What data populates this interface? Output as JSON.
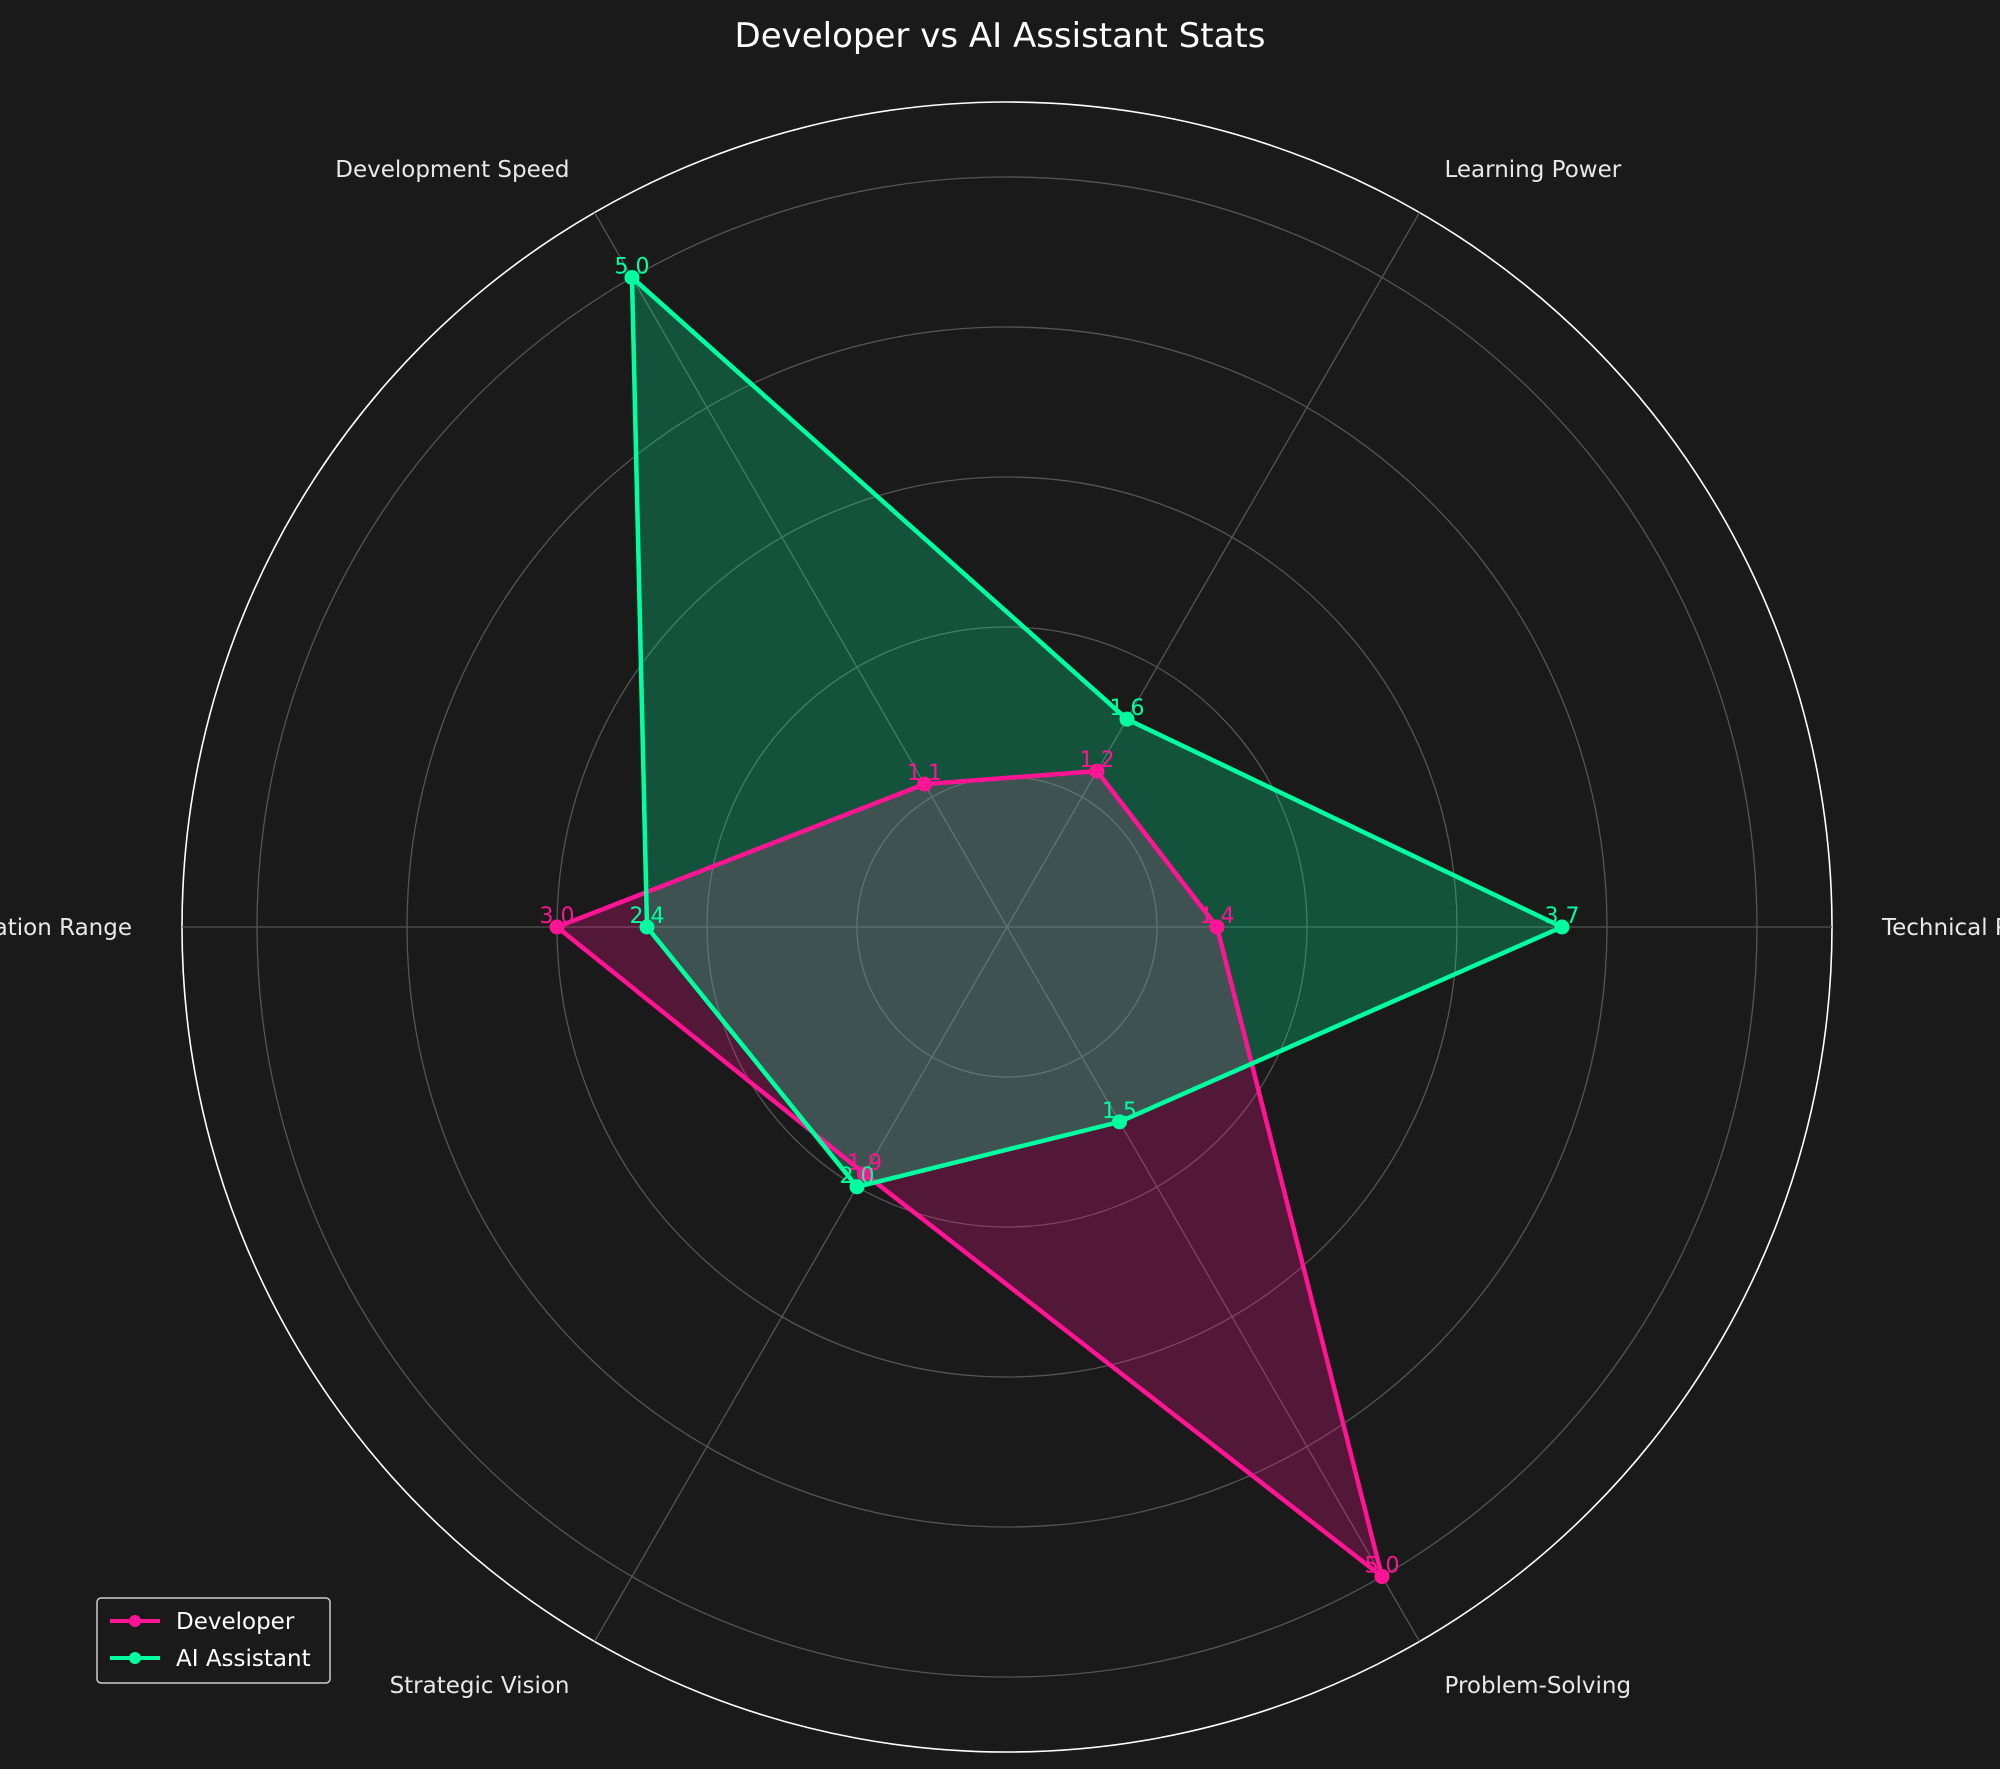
{
  "chart_data": {
    "type": "radar",
    "title": "Developer vs AI Assistant Stats",
    "categories": [
      "Technical Precision",
      "Learning Power",
      "Development Speed",
      "Collaboration Range",
      "Strategic Vision",
      "Problem-Solving"
    ],
    "series": [
      {
        "name": "Developer",
        "values": [
          1.4,
          1.2,
          1.1,
          3.0,
          1.9,
          5.0
        ],
        "color": "#ff1493"
      },
      {
        "name": "AI Assistant",
        "values": [
          3.7,
          1.6,
          5.0,
          2.4,
          2.0,
          1.5
        ],
        "color": "#00ff9f"
      }
    ],
    "rlim": [
      0,
      5.5
    ],
    "grid": true,
    "legend_position": "lower-left"
  },
  "colors": {
    "background": "#1a1a1a",
    "grid": "#555555",
    "outer_ring": "#ffffff"
  }
}
